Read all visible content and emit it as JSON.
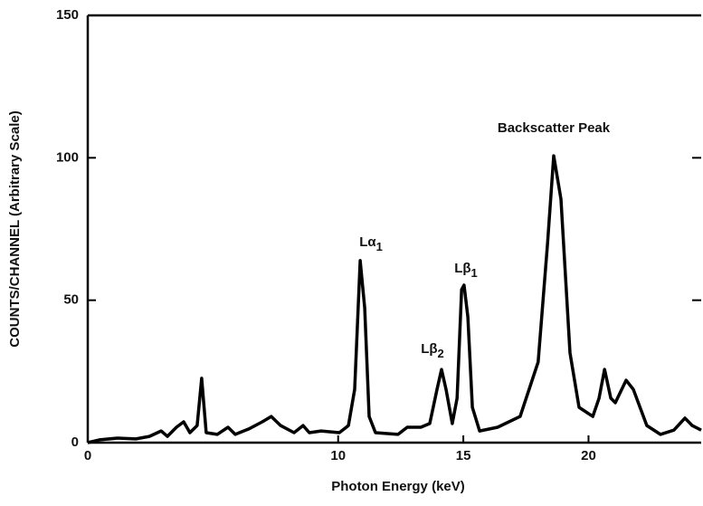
{
  "chart_data": {
    "type": "line",
    "x_label": "Photon Energy (keV)",
    "y_label": "COUNTS/CHANNEL (Arbitrary Scale)",
    "xlim": [
      0,
      24.5
    ],
    "xticks": [
      0,
      10,
      15,
      20
    ],
    "ylim": [
      0,
      150
    ],
    "yticks": [
      0,
      50,
      100,
      150
    ],
    "series": [
      {
        "color": "#000000",
        "x": [
          0,
          0.47,
          1.19,
          1.92,
          2.46,
          2.93,
          3.18,
          3.54,
          3.83,
          4.08,
          4.37,
          4.55,
          4.73,
          5.17,
          5.6,
          5.89,
          6.43,
          6.97,
          7.33,
          7.7,
          8.24,
          8.6,
          8.85,
          9.32,
          10.05,
          10.41,
          10.66,
          10.88,
          11.06,
          11.24,
          11.49,
          12.39,
          12.76,
          13.3,
          13.66,
          13.95,
          14.13,
          14.31,
          14.56,
          14.75,
          14.93,
          15.03,
          15.18,
          15.36,
          15.65,
          16.37,
          17.27,
          17.99,
          18.36,
          18.61,
          18.9,
          19.26,
          19.62,
          20.17,
          20.42,
          20.64,
          20.89,
          21.07,
          21.5,
          21.79,
          22.33,
          22.87,
          23.41,
          23.85,
          24.14,
          24.5
        ],
        "values": [
          0,
          1,
          1.6,
          1.3,
          2.2,
          4.1,
          2.2,
          5.4,
          7.3,
          3.5,
          6,
          22.6,
          3.5,
          2.9,
          5.4,
          2.9,
          4.8,
          7.3,
          9.2,
          6,
          3.5,
          6,
          3.5,
          4.1,
          3.5,
          6,
          18.7,
          63.9,
          47.3,
          9.2,
          3.5,
          2.9,
          5.4,
          5.4,
          6.7,
          18.7,
          25.7,
          18.7,
          6.7,
          15.6,
          53.7,
          55.3,
          44.2,
          12.4,
          4.1,
          5.4,
          9.2,
          28.3,
          69.6,
          100.7,
          85.5,
          31.5,
          12.4,
          9.2,
          15.6,
          25.7,
          15.6,
          14,
          21.9,
          18.7,
          6,
          2.9,
          4.4,
          8.6,
          6,
          4.4
        ]
      }
    ],
    "annotations": [
      {
        "text": "Backscatter Peak"
      },
      {
        "text": "Lα",
        "sub": "1"
      },
      {
        "text": "Lβ",
        "sub": "2"
      },
      {
        "text": "Lβ",
        "sub": "1"
      }
    ]
  }
}
